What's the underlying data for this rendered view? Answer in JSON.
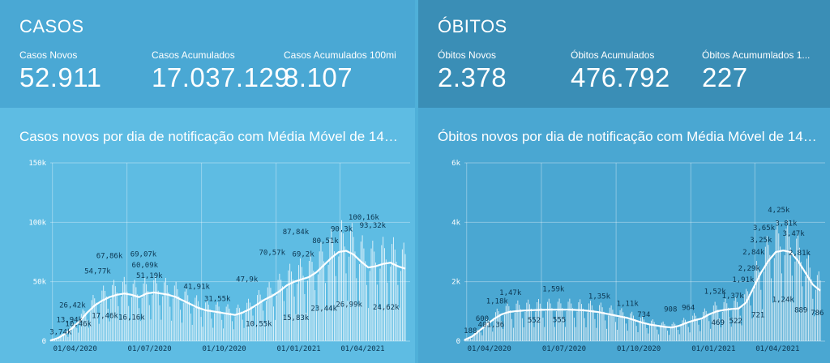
{
  "cases": {
    "title": "CASOS",
    "stats": [
      {
        "label": "Casos Novos",
        "value": "52.911"
      },
      {
        "label": "Casos Acumulados",
        "value": "17.037.129"
      },
      {
        "label": "Casos Acumulados 100mi",
        "value": "8.107"
      }
    ],
    "chart_title": "Casos novos por dia de notificação com Média Móvel de 14 di..."
  },
  "deaths": {
    "title": "ÓBITOS",
    "stats": [
      {
        "label": "Óbitos Novos",
        "value": "2.378"
      },
      {
        "label": "Óbitos Acumulados",
        "value": "476.792"
      },
      {
        "label": "Óbitos Acumumlados 1...",
        "value": "227"
      }
    ],
    "chart_title": "Óbitos novos por dia de notificação com Média Móvel de 14 d..."
  },
  "chart_data": [
    {
      "type": "bar",
      "y_ticks": [
        "0",
        "50k",
        "100k",
        "150k"
      ],
      "ylim": [
        0,
        150000
      ],
      "x_ticks": [
        "01/04/2020",
        "01/07/2020",
        "01/10/2020",
        "01/01/2021",
        "01/04/2021"
      ],
      "moving_average": [
        [
          0,
          500
        ],
        [
          5,
          2500
        ],
        [
          10,
          6000
        ],
        [
          15,
          11000
        ],
        [
          20,
          17000
        ],
        [
          25,
          24000
        ],
        [
          30,
          30000
        ],
        [
          35,
          34000
        ],
        [
          40,
          37000
        ],
        [
          45,
          39000
        ],
        [
          50,
          40000
        ],
        [
          55,
          39000
        ],
        [
          60,
          37000
        ],
        [
          65,
          40000
        ],
        [
          70,
          41000
        ],
        [
          75,
          40000
        ],
        [
          80,
          39000
        ],
        [
          85,
          37000
        ],
        [
          90,
          34000
        ],
        [
          95,
          31000
        ],
        [
          100,
          28000
        ],
        [
          105,
          26000
        ],
        [
          110,
          25000
        ],
        [
          115,
          24000
        ],
        [
          120,
          23000
        ],
        [
          125,
          22000
        ],
        [
          130,
          24000
        ],
        [
          135,
          27000
        ],
        [
          140,
          31000
        ],
        [
          145,
          35000
        ],
        [
          150,
          38000
        ],
        [
          155,
          42000
        ],
        [
          160,
          47000
        ],
        [
          165,
          50000
        ],
        [
          170,
          52000
        ],
        [
          175,
          54000
        ],
        [
          180,
          58000
        ],
        [
          185,
          64000
        ],
        [
          190,
          70000
        ],
        [
          195,
          75000
        ],
        [
          200,
          76000
        ],
        [
          205,
          73000
        ],
        [
          210,
          67000
        ],
        [
          215,
          62000
        ],
        [
          220,
          63000
        ],
        [
          225,
          65000
        ],
        [
          230,
          66000
        ],
        [
          235,
          63000
        ],
        [
          240,
          61000
        ]
      ],
      "data_labels": [
        {
          "x": 7,
          "y": 3740,
          "text": "3,74k"
        },
        {
          "x": 19,
          "y": 10460,
          "text": "10,46k"
        },
        {
          "x": 13,
          "y": 13940,
          "text": "13,94k"
        },
        {
          "x": 15,
          "y": 26420,
          "text": "26,42k"
        },
        {
          "x": 32,
          "y": 54770,
          "text": "54,77k"
        },
        {
          "x": 40,
          "y": 67860,
          "text": "67,86k"
        },
        {
          "x": 37,
          "y": 17460,
          "text": "17,46k"
        },
        {
          "x": 63,
          "y": 69070,
          "text": "69,07k"
        },
        {
          "x": 64,
          "y": 60090,
          "text": "60,09k"
        },
        {
          "x": 67,
          "y": 51190,
          "text": "51,19k"
        },
        {
          "x": 55,
          "y": 16160,
          "text": "16,16k"
        },
        {
          "x": 99,
          "y": 41910,
          "text": "41,91k"
        },
        {
          "x": 113,
          "y": 31550,
          "text": "31,55k"
        },
        {
          "x": 133,
          "y": 47900,
          "text": "47,9k"
        },
        {
          "x": 141,
          "y": 10550,
          "text": "10,55k"
        },
        {
          "x": 150,
          "y": 70570,
          "text": "70,57k"
        },
        {
          "x": 166,
          "y": 87840,
          "text": "87,84k"
        },
        {
          "x": 171,
          "y": 69200,
          "text": "69,2k"
        },
        {
          "x": 166,
          "y": 15830,
          "text": "15,83k"
        },
        {
          "x": 186,
          "y": 80510,
          "text": "80,51k"
        },
        {
          "x": 185,
          "y": 23440,
          "text": "23,44k"
        },
        {
          "x": 197,
          "y": 90300,
          "text": "90,3k"
        },
        {
          "x": 212,
          "y": 100160,
          "text": "100,16k"
        },
        {
          "x": 218,
          "y": 93320,
          "text": "93,32k"
        },
        {
          "x": 202,
          "y": 26990,
          "text": "26,99k"
        },
        {
          "x": 227,
          "y": 24620,
          "text": "24,62k"
        }
      ]
    },
    {
      "type": "bar",
      "y_ticks": [
        "0",
        "2k",
        "4k",
        "6k"
      ],
      "ylim": [
        0,
        6000
      ],
      "x_ticks": [
        "01/04/2020",
        "01/07/2020",
        "01/10/2020",
        "01/01/2021",
        "01/04/2021"
      ],
      "moving_average": [
        [
          0,
          40
        ],
        [
          5,
          150
        ],
        [
          10,
          350
        ],
        [
          15,
          550
        ],
        [
          20,
          750
        ],
        [
          25,
          900
        ],
        [
          30,
          980
        ],
        [
          35,
          1010
        ],
        [
          40,
          1030
        ],
        [
          50,
          1050
        ],
        [
          60,
          1060
        ],
        [
          70,
          1060
        ],
        [
          80,
          1040
        ],
        [
          90,
          980
        ],
        [
          100,
          880
        ],
        [
          110,
          780
        ],
        [
          115,
          700
        ],
        [
          120,
          620
        ],
        [
          125,
          560
        ],
        [
          130,
          520
        ],
        [
          135,
          480
        ],
        [
          140,
          460
        ],
        [
          145,
          520
        ],
        [
          150,
          620
        ],
        [
          155,
          700
        ],
        [
          160,
          760
        ],
        [
          165,
          900
        ],
        [
          170,
          1000
        ],
        [
          175,
          1050
        ],
        [
          180,
          1080
        ],
        [
          185,
          1100
        ],
        [
          190,
          1300
        ],
        [
          195,
          1800
        ],
        [
          200,
          2300
        ],
        [
          205,
          2700
        ],
        [
          210,
          3000
        ],
        [
          215,
          3050
        ],
        [
          220,
          3000
        ],
        [
          225,
          2700
        ],
        [
          230,
          2300
        ],
        [
          235,
          1900
        ],
        [
          240,
          1700
        ]
      ],
      "data_labels": [
        {
          "x": 4,
          "y": 188,
          "text": "188"
        },
        {
          "x": 12,
          "y": 600,
          "text": "600"
        },
        {
          "x": 18,
          "y": 401,
          "text": "401,36"
        },
        {
          "x": 22,
          "y": 1180,
          "text": "1,18k"
        },
        {
          "x": 31,
          "y": 1470,
          "text": "1,47k"
        },
        {
          "x": 47,
          "y": 552,
          "text": "552"
        },
        {
          "x": 60,
          "y": 1590,
          "text": "1,59k"
        },
        {
          "x": 64,
          "y": 555,
          "text": "555"
        },
        {
          "x": 91,
          "y": 1350,
          "text": "1,35k"
        },
        {
          "x": 110,
          "y": 1110,
          "text": "1,11k"
        },
        {
          "x": 121,
          "y": 734,
          "text": "734"
        },
        {
          "x": 139,
          "y": 908,
          "text": "908"
        },
        {
          "x": 151,
          "y": 964,
          "text": "964"
        },
        {
          "x": 169,
          "y": 1520,
          "text": "1,52k"
        },
        {
          "x": 171,
          "y": 469,
          "text": "469"
        },
        {
          "x": 181,
          "y": 1370,
          "text": "1,37k"
        },
        {
          "x": 183,
          "y": 522,
          "text": "522"
        },
        {
          "x": 188,
          "y": 1910,
          "text": "1,91k"
        },
        {
          "x": 192,
          "y": 2290,
          "text": "2,29k"
        },
        {
          "x": 198,
          "y": 721,
          "text": "721"
        },
        {
          "x": 195,
          "y": 2840,
          "text": "2,84k"
        },
        {
          "x": 200,
          "y": 3250,
          "text": "3,25k"
        },
        {
          "x": 202,
          "y": 3650,
          "text": "3,65k"
        },
        {
          "x": 212,
          "y": 4250,
          "text": "4,25k"
        },
        {
          "x": 215,
          "y": 1240,
          "text": "1,24k"
        },
        {
          "x": 217,
          "y": 3810,
          "text": "3,81k"
        },
        {
          "x": 222,
          "y": 3470,
          "text": "3,47k"
        },
        {
          "x": 226,
          "y": 2810,
          "text": "2,81k"
        },
        {
          "x": 227,
          "y": 889,
          "text": "889"
        },
        {
          "x": 238,
          "y": 786,
          "text": "786"
        }
      ]
    }
  ]
}
